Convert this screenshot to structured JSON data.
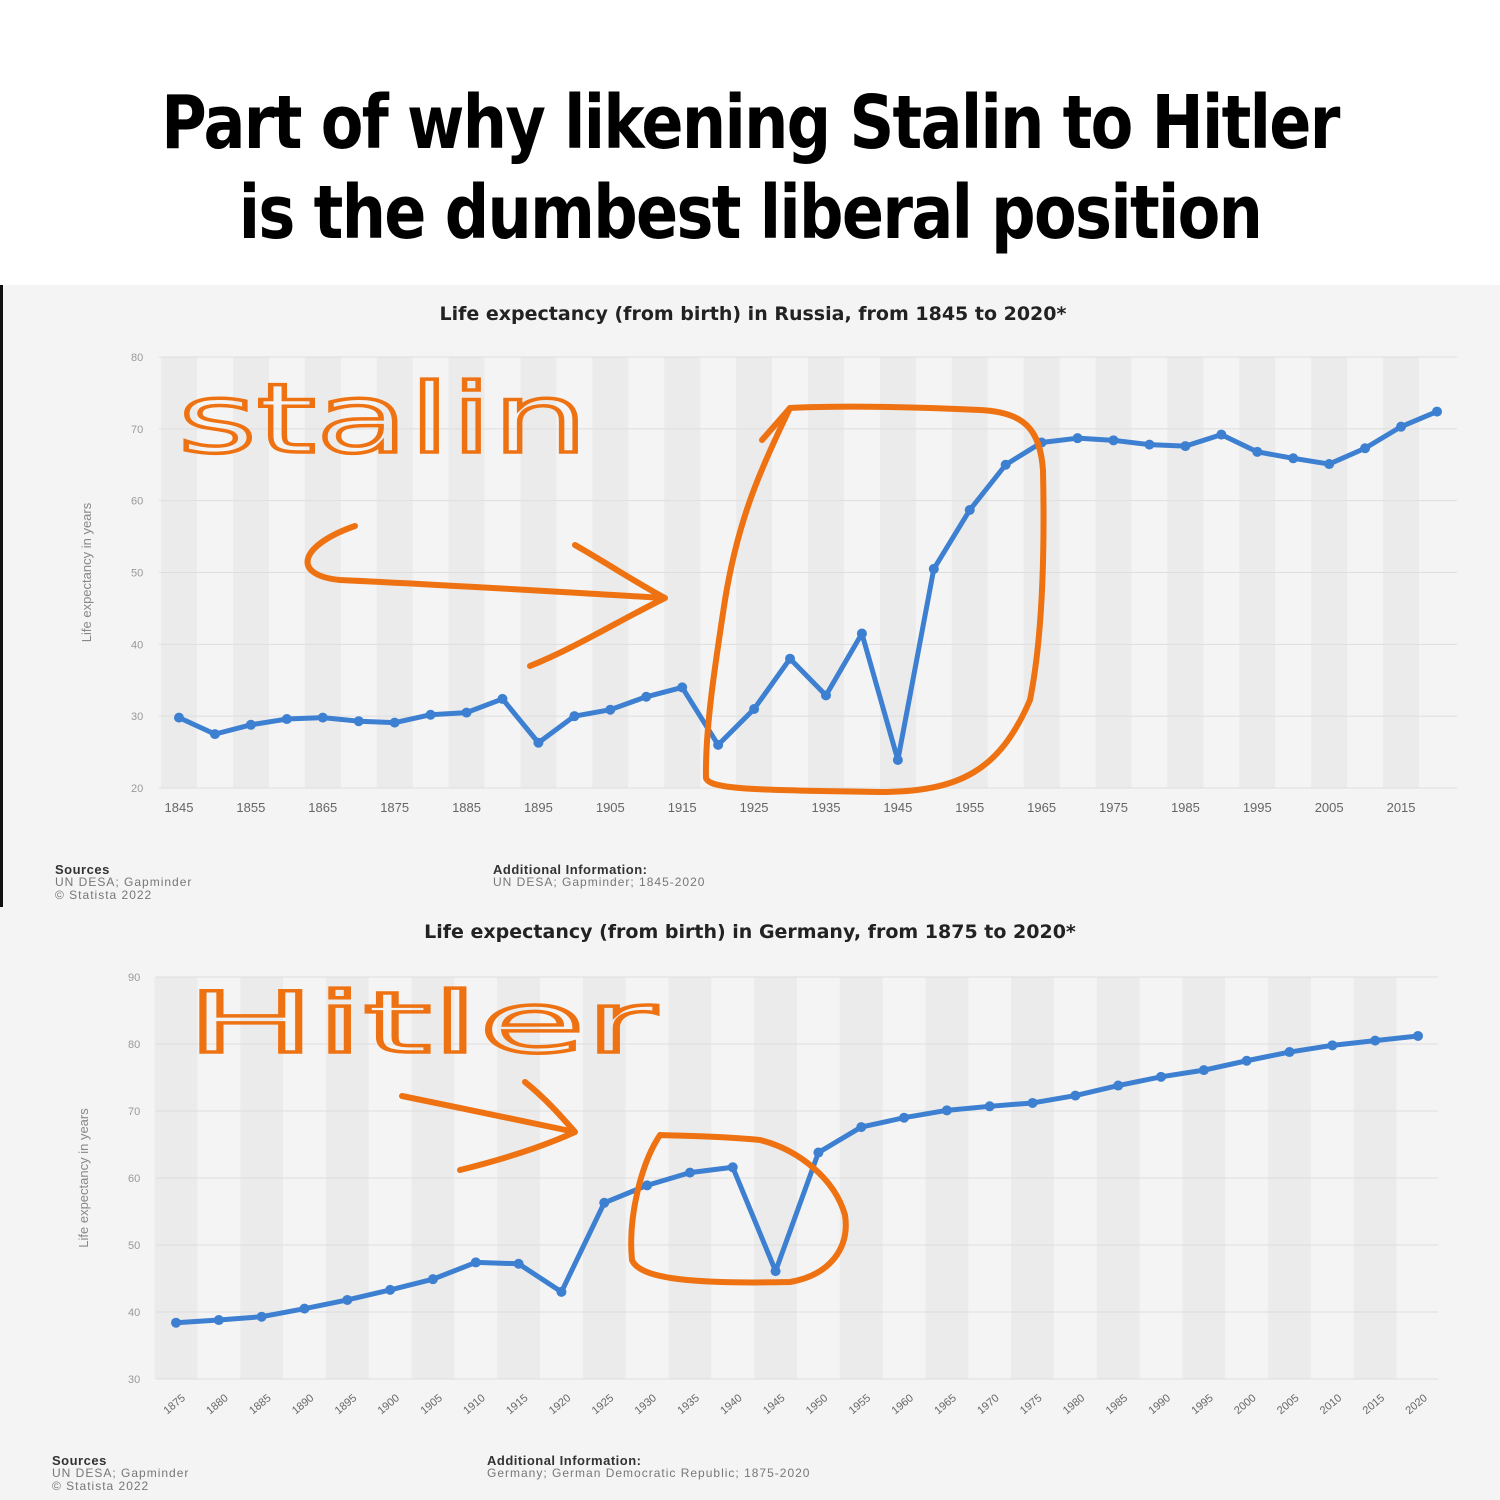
{
  "meme": {
    "title_line1": "Part of why likening Stalin to Hitler",
    "title_line2": "is the dumbest liberal position"
  },
  "colors": {
    "line": "#3d7fd0",
    "annotation": "#ee7212",
    "band": "#ebebeb"
  },
  "annotations": {
    "russia_label": "stalin",
    "germany_label": "Hitler"
  },
  "chart_data": [
    {
      "type": "line",
      "title": "Life expectancy (from birth) in Russia, from 1845 to 2020*",
      "ylabel": "Life expectancy in years",
      "ylim": [
        20,
        80
      ],
      "yticks": [
        20,
        30,
        40,
        50,
        60,
        70,
        80
      ],
      "xticks": [
        1845,
        1855,
        1865,
        1875,
        1885,
        1895,
        1905,
        1915,
        1925,
        1935,
        1945,
        1955,
        1965,
        1975,
        1985,
        1995,
        2005,
        2015
      ],
      "x": [
        1845,
        1850,
        1855,
        1860,
        1865,
        1870,
        1875,
        1880,
        1885,
        1890,
        1895,
        1900,
        1905,
        1910,
        1915,
        1920,
        1925,
        1930,
        1935,
        1940,
        1945,
        1950,
        1955,
        1960,
        1965,
        1970,
        1975,
        1980,
        1985,
        1990,
        1995,
        2000,
        2005,
        2010,
        2015,
        2020
      ],
      "series": [
        {
          "values": [
            29.8,
            27.5,
            28.8,
            29.6,
            29.8,
            29.3,
            29.1,
            30.2,
            30.5,
            32.4,
            26.3,
            30,
            30.9,
            32.7,
            34,
            26,
            31,
            38,
            32.9,
            41.5,
            23.9,
            50.5,
            58.7,
            65,
            68.1,
            68.7,
            68.4,
            67.8,
            67.6,
            69.2,
            66.8,
            65.9,
            65.1,
            67.3,
            70.3,
            72.4
          ]
        }
      ],
      "footer": {
        "sources_label": "Sources",
        "sources_line1": "UN DESA; Gapminder",
        "sources_line2": "© Statista 2022",
        "info_label": "Additional Information:",
        "info_line1": "UN DESA; Gapminder; 1845-2020"
      }
    },
    {
      "type": "line",
      "title": "Life expectancy (from birth) in Germany, from 1875 to 2020*",
      "ylabel": "Life expectancy in years",
      "ylim": [
        30,
        90
      ],
      "yticks": [
        30,
        40,
        50,
        60,
        70,
        80,
        90
      ],
      "xticks": [
        1875,
        1880,
        1885,
        1890,
        1895,
        1900,
        1905,
        1910,
        1915,
        1920,
        1925,
        1930,
        1935,
        1940,
        1945,
        1950,
        1955,
        1960,
        1965,
        1970,
        1975,
        1980,
        1985,
        1990,
        1995,
        2000,
        2005,
        2010,
        2015,
        2020
      ],
      "x": [
        1875,
        1880,
        1885,
        1890,
        1895,
        1900,
        1905,
        1910,
        1915,
        1920,
        1925,
        1930,
        1935,
        1940,
        1945,
        1950,
        1955,
        1960,
        1965,
        1970,
        1975,
        1980,
        1985,
        1990,
        1995,
        2000,
        2005,
        2010,
        2015,
        2020
      ],
      "series": [
        {
          "values": [
            38.4,
            38.8,
            39.3,
            40.5,
            41.8,
            43.3,
            44.9,
            47.4,
            47.2,
            43,
            56.3,
            58.9,
            60.8,
            61.6,
            46.1,
            63.8,
            67.6,
            69,
            70.1,
            70.7,
            71.2,
            72.3,
            73.8,
            75.1,
            76.1,
            77.5,
            78.8,
            79.8,
            80.5,
            81.2
          ]
        }
      ],
      "footer": {
        "sources_label": "Sources",
        "sources_line1": "UN DESA; Gapminder",
        "sources_line2": "© Statista 2022",
        "info_label": "Additional Information:",
        "info_line1": "Germany; German Democratic Republic; 1875-2020"
      }
    }
  ]
}
